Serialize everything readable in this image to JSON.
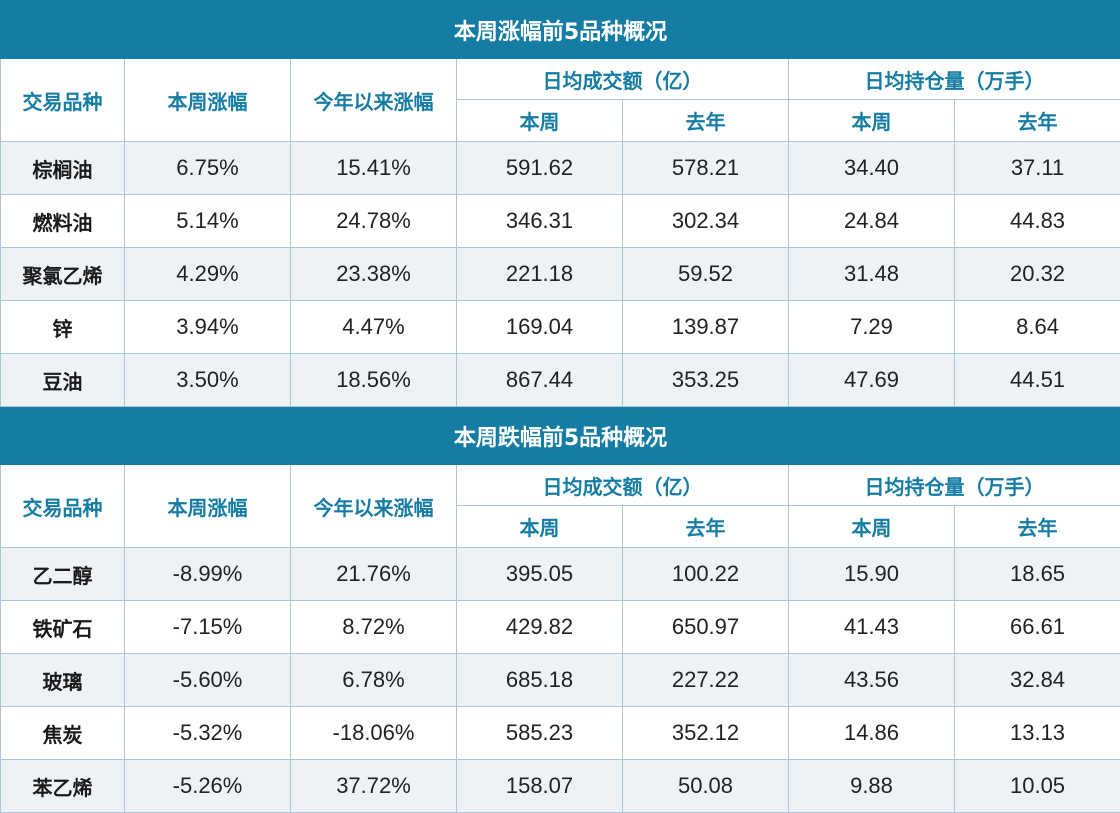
{
  "sections": [
    {
      "title": "本周涨幅前5品种概况",
      "headers": {
        "variety": "交易品种",
        "weekly_change": "本周涨幅",
        "ytd_change": "今年以来涨幅",
        "avg_volume": "日均成交额（亿）",
        "avg_position": "日均持仓量（万手）",
        "this_week": "本周",
        "last_year": "去年"
      },
      "rows": [
        {
          "name": "棕榈油",
          "weekly": "6.75%",
          "ytd": "15.41%",
          "vol_week": "591.62",
          "vol_year": "578.21",
          "pos_week": "34.40",
          "pos_year": "37.11"
        },
        {
          "name": "燃料油",
          "weekly": "5.14%",
          "ytd": "24.78%",
          "vol_week": "346.31",
          "vol_year": "302.34",
          "pos_week": "24.84",
          "pos_year": "44.83"
        },
        {
          "name": "聚氯乙烯",
          "weekly": "4.29%",
          "ytd": "23.38%",
          "vol_week": "221.18",
          "vol_year": "59.52",
          "pos_week": "31.48",
          "pos_year": "20.32"
        },
        {
          "name": "锌",
          "weekly": "3.94%",
          "ytd": "4.47%",
          "vol_week": "169.04",
          "vol_year": "139.87",
          "pos_week": "7.29",
          "pos_year": "8.64"
        },
        {
          "name": "豆油",
          "weekly": "3.50%",
          "ytd": "18.56%",
          "vol_week": "867.44",
          "vol_year": "353.25",
          "pos_week": "47.69",
          "pos_year": "44.51"
        }
      ]
    },
    {
      "title": "本周跌幅前5品种概况",
      "headers": {
        "variety": "交易品种",
        "weekly_change": "本周涨幅",
        "ytd_change": "今年以来涨幅",
        "avg_volume": "日均成交额（亿）",
        "avg_position": "日均持仓量（万手）",
        "this_week": "本周",
        "last_year": "去年"
      },
      "rows": [
        {
          "name": "乙二醇",
          "weekly": "-8.99%",
          "ytd": "21.76%",
          "vol_week": "395.05",
          "vol_year": "100.22",
          "pos_week": "15.90",
          "pos_year": "18.65"
        },
        {
          "name": "铁矿石",
          "weekly": "-7.15%",
          "ytd": "8.72%",
          "vol_week": "429.82",
          "vol_year": "650.97",
          "pos_week": "41.43",
          "pos_year": "66.61"
        },
        {
          "name": "玻璃",
          "weekly": "-5.60%",
          "ytd": "6.78%",
          "vol_week": "685.18",
          "vol_year": "227.22",
          "pos_week": "43.56",
          "pos_year": "32.84"
        },
        {
          "name": "焦炭",
          "weekly": "-5.32%",
          "ytd": "-18.06%",
          "vol_week": "585.23",
          "vol_year": "352.12",
          "pos_week": "14.86",
          "pos_year": "13.13"
        },
        {
          "name": "苯乙烯",
          "weekly": "-5.26%",
          "ytd": "37.72%",
          "vol_week": "158.07",
          "vol_year": "50.08",
          "pos_week": "9.88",
          "pos_year": "10.05"
        }
      ]
    }
  ]
}
